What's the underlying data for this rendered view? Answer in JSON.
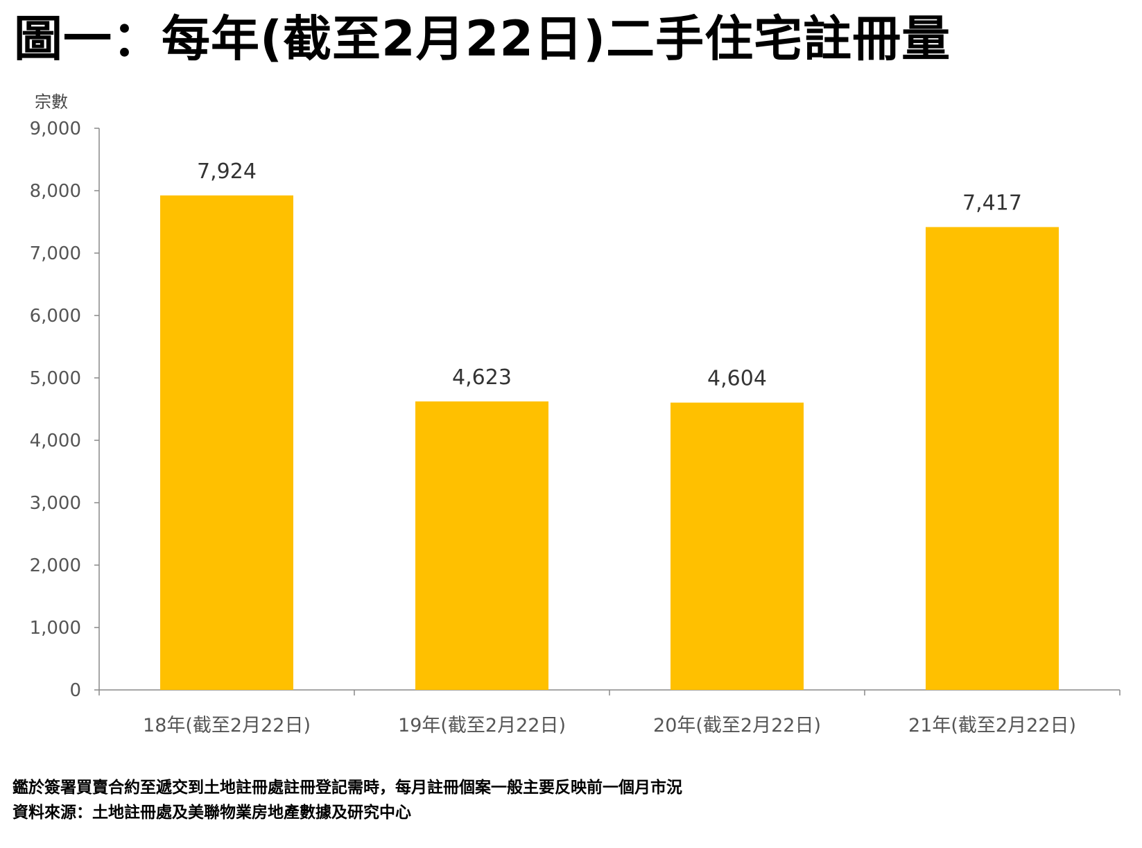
{
  "title": "圖一：每年(截至2月22日)二手住宅註冊量",
  "chart_data": {
    "type": "bar",
    "ylabel": "宗數",
    "ylim": [
      0,
      9000
    ],
    "yticks": [
      "0",
      "1,000",
      "2,000",
      "3,000",
      "4,000",
      "5,000",
      "6,000",
      "7,000",
      "8,000",
      "9,000"
    ],
    "categories": [
      "18年(截至2月22日)",
      "19年(截至2月22日)",
      "20年(截至2月22日)",
      "21年(截至2月22日)"
    ],
    "values": [
      7924,
      4623,
      4604,
      7417
    ],
    "data_labels": [
      "7,924",
      "4,623",
      "4,604",
      "7,417"
    ],
    "bar_color": "#FFC000",
    "axis_color": "#888888",
    "grid": false
  },
  "notes": {
    "line1": "鑑於簽署買賣合約至遞交到土地註冊處註冊登記需時，每月註冊個案一般主要反映前一個月市況",
    "line2": "資料來源：土地註冊處及美聯物業房地產數據及研究中心"
  }
}
